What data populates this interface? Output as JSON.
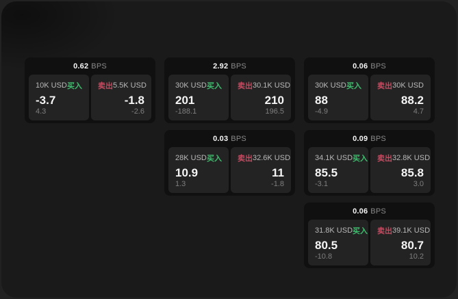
{
  "labels": {
    "bps_suffix": "BPS",
    "buy": "买入",
    "sell": "卖出"
  },
  "colors": {
    "buy": "#3fbd6e",
    "sell": "#c44a60",
    "card_bg": "#101010",
    "panel_bg": "#232323",
    "window_bg": "#1a1a1a"
  },
  "cards": [
    {
      "bps": "0.62",
      "col": 1,
      "row": 1,
      "buy": {
        "amount": "10K USD",
        "value": "-3.7",
        "sub": "4.3"
      },
      "sell": {
        "amount": "5.5K USD",
        "value": "-1.8",
        "sub": "-2.6"
      }
    },
    {
      "bps": "2.92",
      "col": 2,
      "row": 1,
      "buy": {
        "amount": "30K USD",
        "value": "201",
        "sub": "-188.1"
      },
      "sell": {
        "amount": "30.1K USD",
        "value": "210",
        "sub": "196.5"
      }
    },
    {
      "bps": "0.06",
      "col": 3,
      "row": 1,
      "buy": {
        "amount": "30K USD",
        "value": "88",
        "sub": "-4.9"
      },
      "sell": {
        "amount": "30K USD",
        "value": "88.2",
        "sub": "4.7"
      }
    },
    {
      "bps": "0.03",
      "col": 2,
      "row": 2,
      "buy": {
        "amount": "28K USD",
        "value": "10.9",
        "sub": "1.3"
      },
      "sell": {
        "amount": "32.6K USD",
        "value": "11",
        "sub": "-1.8"
      }
    },
    {
      "bps": "0.09",
      "col": 3,
      "row": 2,
      "buy": {
        "amount": "34.1K USD",
        "value": "85.5",
        "sub": "-3.1"
      },
      "sell": {
        "amount": "32.8K USD",
        "value": "85.8",
        "sub": "3.0"
      }
    },
    {
      "bps": "0.06",
      "col": 3,
      "row": 3,
      "buy": {
        "amount": "31.8K USD",
        "value": "80.5",
        "sub": "-10.8"
      },
      "sell": {
        "amount": "39.1K USD",
        "value": "80.7",
        "sub": "10.2"
      }
    }
  ]
}
